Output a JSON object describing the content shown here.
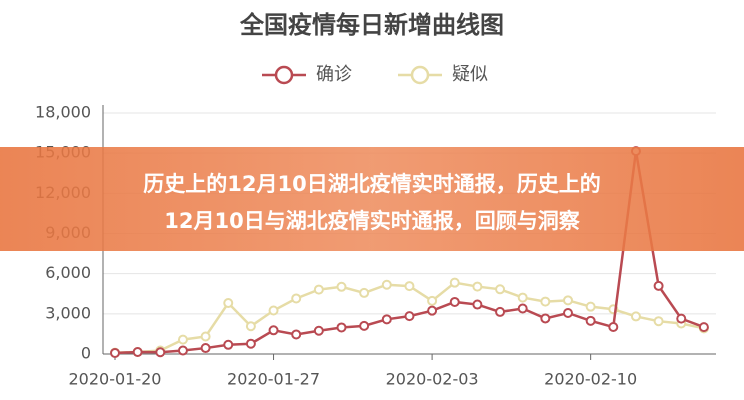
{
  "chart_data": {
    "type": "line",
    "title": "全国疫情每日新增曲线图",
    "categories": [
      "2020-01-20",
      null,
      null,
      null,
      null,
      null,
      null,
      "2020-01-27",
      null,
      null,
      null,
      null,
      null,
      null,
      "2020-02-03",
      null,
      null,
      null,
      null,
      null,
      null,
      "2020-02-10",
      null,
      null,
      null,
      null,
      null
    ],
    "series": [
      {
        "name": "确诊",
        "color": "#b94a52",
        "values": [
          77,
          149,
          131,
          259,
          444,
          688,
          769,
          1771,
          1459,
          1737,
          1982,
          2102,
          2590,
          2829,
          3235,
          3887,
          3694,
          3143,
          3399,
          2656,
          3062,
          2478,
          2015,
          15152,
          5090,
          2641,
          2009
        ]
      },
      {
        "name": "疑似",
        "color": "#e6dca6",
        "values": [
          100,
          150,
          257,
          1072,
          1309,
          3806,
          2077,
          3248,
          4148,
          4812,
          5019,
          4562,
          5173,
          5072,
          3971,
          5328,
          5036,
          4833,
          4214,
          3916,
          4008,
          3536,
          3342,
          2807,
          2450,
          2277,
          1918
        ]
      }
    ],
    "ylim": [
      0,
      18000
    ],
    "yticks": [
      0,
      {
        "value": 3000,
        "label": "3,000"
      },
      {
        "value": 6000,
        "label": "6,000"
      },
      {
        "value": 9000,
        "label": "9,000"
      },
      {
        "value": 12000,
        "label": "12,000"
      },
      {
        "value": 15000,
        "label": "15,000"
      },
      {
        "value": 18000,
        "label": "18,000"
      }
    ],
    "grid": true
  },
  "banner": {
    "lines": [
      "历史上的12月10日湖北疫情实时通报，历史上的",
      "12月10日与湖北疫情实时通报，回顾与洞察"
    ]
  }
}
